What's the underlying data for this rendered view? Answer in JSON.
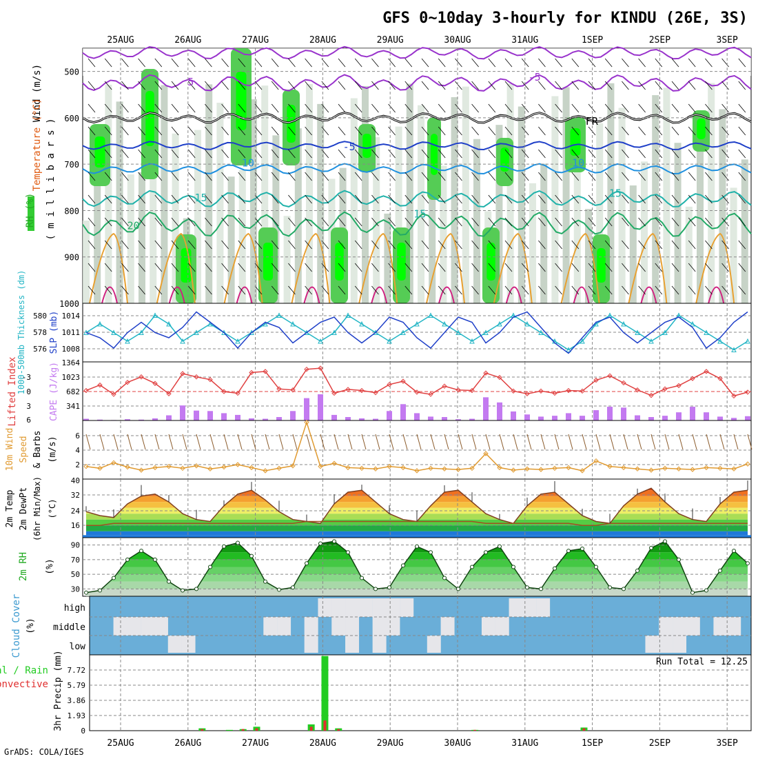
{
  "title": "GFS 0~10day 3-hourly for KINDU (26E, 3S)",
  "credit": "GrADS: COLA/IGES",
  "dates": [
    "25AUG",
    "26AUG",
    "27AUG",
    "28AUG",
    "29AUG",
    "30AUG",
    "31AUG",
    "1SEP",
    "2SEP",
    "3SEP"
  ],
  "colors": {
    "rh_green": "#33cc33",
    "rh_bright": "#00ff00",
    "thickness": "#22b5c5",
    "slp": "#1e3fc8",
    "lifted_index": "#e04040",
    "cape": "#c37af0",
    "wind": "#e09a30",
    "temp": "#e05a10",
    "dewpt": "#804010",
    "rh2m": "#22aa22",
    "cloud_bg": "#6aaed8",
    "cloud": "#e6e6ea",
    "precip_total": "#22cc22",
    "precip_conv": "#e03030"
  },
  "panels": {
    "upper": {
      "ylabels": [
        {
          "text": "Wind (m/s)",
          "color": "#000000"
        },
        {
          "text": "Temperature (°C)",
          "color": "#e05a10"
        },
        {
          "text": "RH (%)",
          "color": "#22aa22"
        }
      ],
      "unit_label": "( m i l l i b a r s )",
      "y_ticks": [
        "500",
        "600",
        "700",
        "800",
        "900",
        "1000"
      ],
      "contour_labels": [
        {
          "text": "5",
          "color": "#9933cc",
          "day": 1.45,
          "p": 530
        },
        {
          "text": "-5",
          "color": "#9933cc",
          "day": 6.55,
          "p": 520
        },
        {
          "text": "FR",
          "color": "#000000",
          "day": 7.4,
          "p": 615
        },
        {
          "text": "-5",
          "color": "#1e3fc8",
          "day": 3.8,
          "p": 670
        },
        {
          "text": "10",
          "color": "#1e90e0",
          "day": 2.3,
          "p": 705
        },
        {
          "text": "10",
          "color": "#1e90e0",
          "day": 7.2,
          "p": 705
        },
        {
          "text": "15",
          "color": "#20b2aa",
          "day": 1.6,
          "p": 780
        },
        {
          "text": "15",
          "color": "#20b2aa",
          "day": 4.85,
          "p": 815
        },
        {
          "text": "15",
          "color": "#20b2aa",
          "day": 7.75,
          "p": 770
        },
        {
          "text": "20",
          "color": "#22aa66",
          "day": 0.6,
          "p": 840
        }
      ]
    },
    "slp": {
      "label_left": "1000-500mb Thickness (dm)",
      "label_right": "SLP (mb)",
      "thick_ticks": [
        "580",
        "578",
        "576"
      ],
      "slp_ticks": [
        "1014",
        "1011",
        "1008"
      ]
    },
    "cape": {
      "label_left": "Lifted Index",
      "label_right": "CAPE (J/kg)",
      "li_ticks": [
        "-3",
        "0",
        "3",
        "6"
      ],
      "cape_ticks": [
        "1364",
        "1023",
        "682",
        "341"
      ]
    },
    "wind": {
      "labels": [
        "10m Wind",
        "Speed",
        "& Barbs",
        "(m/s)"
      ],
      "ticks": [
        "6",
        "4",
        "2"
      ]
    },
    "temp": {
      "labels": [
        "2m Temp",
        "2m DewPt",
        "(6hr Min/Max)",
        "(°C)"
      ],
      "ticks": [
        "40",
        "32",
        "24",
        "16"
      ]
    },
    "rh2m": {
      "labels": [
        "2m RH",
        "(%)"
      ],
      "ticks": [
        "90",
        "70",
        "50",
        "30"
      ]
    },
    "cloud": {
      "labels": [
        "Cloud Cover",
        "(%)"
      ],
      "levels": [
        "high",
        "middle",
        "low"
      ]
    },
    "precip": {
      "labels": [
        "Total / Rain",
        "Convective"
      ],
      "unit": "3hr Precip (mm)",
      "ticks": [
        "7.72",
        "5.79",
        "3.86",
        "1.93",
        "0"
      ],
      "run_total": "Run Total = 12.25"
    }
  },
  "chart_data": [
    {
      "type": "line",
      "name": "pressure-height",
      "ylabel": "millibars",
      "ylim": [
        1000,
        450
      ],
      "grid": true,
      "x": [
        "25AUG",
        "26AUG",
        "27AUG",
        "28AUG",
        "29AUG",
        "30AUG",
        "31AUG",
        "1SEP",
        "2SEP",
        "3SEP"
      ],
      "series": []
    },
    {
      "type": "line",
      "name": "thickness-slp",
      "series": [
        {
          "name": "1000-500mb Thickness (dm)",
          "values": [
            578,
            579,
            578,
            577,
            578,
            580,
            579,
            577,
            578,
            579,
            578,
            577,
            578,
            579,
            580,
            579,
            578,
            577,
            578,
            580,
            579,
            578,
            577,
            578,
            579,
            580,
            579,
            578,
            577,
            578,
            579,
            580,
            579,
            578,
            577,
            576,
            577,
            579,
            580,
            579,
            578,
            577,
            578,
            580,
            579,
            578,
            577,
            576,
            577
          ]
        },
        {
          "name": "SLP (mb)",
          "values": [
            1011,
            1010,
            1008,
            1011,
            1013,
            1011,
            1010,
            1012,
            1015,
            1013,
            1011,
            1008,
            1011,
            1013,
            1012,
            1009,
            1011,
            1013,
            1014,
            1011,
            1009,
            1011,
            1014,
            1013,
            1010,
            1008,
            1011,
            1014,
            1013,
            1009,
            1011,
            1014,
            1015,
            1012,
            1009,
            1007,
            1010,
            1013,
            1014,
            1011,
            1009,
            1011,
            1013,
            1014,
            1012,
            1008,
            1010,
            1013,
            1015
          ]
        }
      ]
    },
    {
      "type": "bar",
      "name": "cape-lifted-index",
      "series": [
        {
          "name": "CAPE (J/kg)",
          "values": [
            40,
            20,
            10,
            30,
            20,
            50,
            120,
            350,
            230,
            220,
            170,
            130,
            50,
            40,
            80,
            220,
            520,
            610,
            130,
            80,
            50,
            40,
            220,
            380,
            170,
            90,
            80,
            30,
            40,
            540,
            420,
            210,
            140,
            90,
            110,
            170,
            110,
            240,
            320,
            300,
            120,
            80,
            110,
            190,
            320,
            190,
            90,
            60,
            100
          ]
        },
        {
          "name": "Lifted Index",
          "values": [
            0.5,
            -0.5,
            1.2,
            -1,
            -2,
            -0.8,
            1.1,
            -2.6,
            -2,
            -1.5,
            0.7,
            1,
            -2.8,
            -3,
            0.2,
            0.4,
            -3.4,
            -3.6,
            1,
            0.3,
            0.5,
            0.9,
            -0.6,
            -1.2,
            0.8,
            1.2,
            -0.3,
            0.4,
            0.5,
            -2.7,
            -1.9,
            0.6,
            1.1,
            0.6,
            1.0,
            0.5,
            0.6,
            -1.4,
            -2.2,
            -0.9,
            0.4,
            1.4,
            0.2,
            -0.4,
            -1.7,
            -3,
            -1.7,
            1.5,
            0.8
          ]
        }
      ]
    },
    {
      "type": "line",
      "name": "10m-wind-speed",
      "ylabel": "m/s",
      "series": [
        {
          "name": "Speed",
          "values": [
            1.5,
            1.2,
            2.1,
            1.4,
            0.9,
            1.3,
            1.5,
            1.2,
            1.6,
            1.1,
            1.4,
            1.8,
            1.3,
            0.8,
            1.2,
            1.6,
            8.7,
            1.5,
            2.0,
            1.3,
            1.2,
            1.1,
            1.5,
            1.3,
            0.8,
            1.2,
            1.1,
            1.0,
            1.2,
            3.6,
            1.3,
            0.9,
            1.1,
            1.0,
            1.2,
            1.3,
            0.8,
            2.4,
            1.5,
            1.3,
            1.1,
            0.9,
            1.2,
            1.1,
            1.0,
            1.3,
            1.2,
            1.1,
            1.9
          ]
        }
      ]
    },
    {
      "type": "area",
      "name": "2m-temp-dewpt",
      "ylabel": "°C",
      "series": [
        {
          "name": "2m Temp",
          "values": [
            24,
            22,
            21,
            28,
            32,
            33,
            29,
            23,
            20,
            19,
            27,
            33,
            35,
            30,
            24,
            20,
            19,
            18,
            28,
            34,
            35,
            29,
            23,
            20,
            19,
            27,
            34,
            35,
            29,
            23,
            20,
            18,
            27,
            33,
            34,
            28,
            22,
            19,
            18,
            27,
            33,
            36,
            29,
            23,
            20,
            19,
            28,
            34,
            35
          ]
        },
        {
          "name": "2m DewPt",
          "values": [
            17,
            17,
            18,
            18,
            18,
            18,
            18,
            18,
            18,
            18,
            18,
            18,
            18,
            18,
            18,
            18,
            19,
            19,
            19,
            19,
            19,
            19,
            19,
            19,
            19,
            19,
            19,
            19,
            19,
            18,
            18,
            18,
            18,
            18,
            18,
            18,
            17,
            17,
            18,
            18,
            18,
            18,
            18,
            18,
            18,
            18,
            18,
            18,
            18
          ]
        }
      ]
    },
    {
      "type": "area",
      "name": "2m-rh",
      "ylabel": "%",
      "series": [
        {
          "name": "2m RH",
          "values": [
            25,
            28,
            45,
            70,
            82,
            70,
            40,
            28,
            30,
            60,
            88,
            93,
            75,
            40,
            29,
            32,
            65,
            92,
            95,
            80,
            45,
            30,
            32,
            62,
            88,
            80,
            45,
            30,
            60,
            80,
            88,
            60,
            32,
            30,
            58,
            82,
            85,
            60,
            32,
            30,
            55,
            86,
            95,
            70,
            25,
            28,
            55,
            82,
            65
          ]
        }
      ]
    },
    {
      "type": "heatmap",
      "name": "cloud-cover",
      "categories": [
        "high",
        "middle",
        "low"
      ]
    },
    {
      "type": "bar",
      "name": "3hr-precip",
      "ylabel": "3hr Precip (mm)",
      "ylim": [
        0,
        9.65
      ],
      "series": [
        {
          "name": "Total",
          "values": [
            0,
            0,
            0,
            0,
            0,
            0,
            0,
            0,
            0.3,
            0,
            0.1,
            0.2,
            0.5,
            0,
            0,
            0,
            0.8,
            9.5,
            0.3,
            0,
            0,
            0,
            0,
            0,
            0,
            0,
            0,
            0,
            0.1,
            0,
            0,
            0,
            0,
            0,
            0,
            0,
            0.4,
            0,
            0,
            0,
            0,
            0,
            0,
            0,
            0,
            0,
            0,
            0,
            0
          ]
        },
        {
          "name": "Convective",
          "values": [
            0,
            0,
            0,
            0,
            0,
            0,
            0,
            0,
            0.2,
            0,
            0,
            0.2,
            0.3,
            0,
            0,
            0,
            0.5,
            1.3,
            0.2,
            0,
            0,
            0,
            0,
            0,
            0,
            0,
            0,
            0,
            0.1,
            0,
            0,
            0,
            0,
            0,
            0,
            0,
            0.3,
            0,
            0,
            0,
            0,
            0,
            0,
            0,
            0,
            0,
            0,
            0,
            0
          ]
        }
      ]
    }
  ]
}
